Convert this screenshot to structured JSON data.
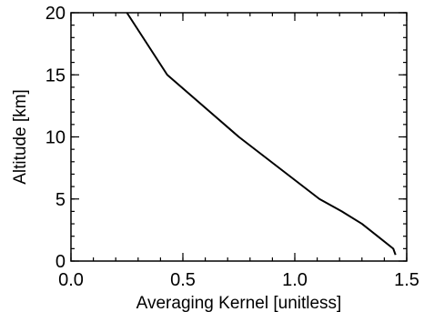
{
  "chart_data": {
    "type": "line",
    "xlabel": "Averaging Kernel [unitless]",
    "ylabel": "Altitude [km]",
    "xlim": [
      0.0,
      1.5
    ],
    "ylim": [
      0,
      20
    ],
    "x_ticks": [
      0.0,
      0.5,
      1.0,
      1.5
    ],
    "x_tick_labels": [
      "0.0",
      "0.5",
      "1.0",
      "1.5"
    ],
    "y_ticks": [
      0,
      5,
      10,
      15,
      20
    ],
    "y_tick_labels": [
      "0",
      "5",
      "10",
      "15",
      "20"
    ],
    "x_minor_step": 0.1,
    "y_minor_step": 1,
    "grid": false,
    "colors": {
      "line": "#000000",
      "axes": "#000000",
      "background": "#ffffff"
    },
    "series": [
      {
        "x": [
          1.45,
          1.44,
          1.37,
          1.3,
          1.21,
          1.11,
          0.75,
          0.43,
          0.25
        ],
        "y": [
          0.5,
          1,
          2,
          3,
          4,
          5,
          10,
          15,
          20
        ]
      }
    ]
  }
}
